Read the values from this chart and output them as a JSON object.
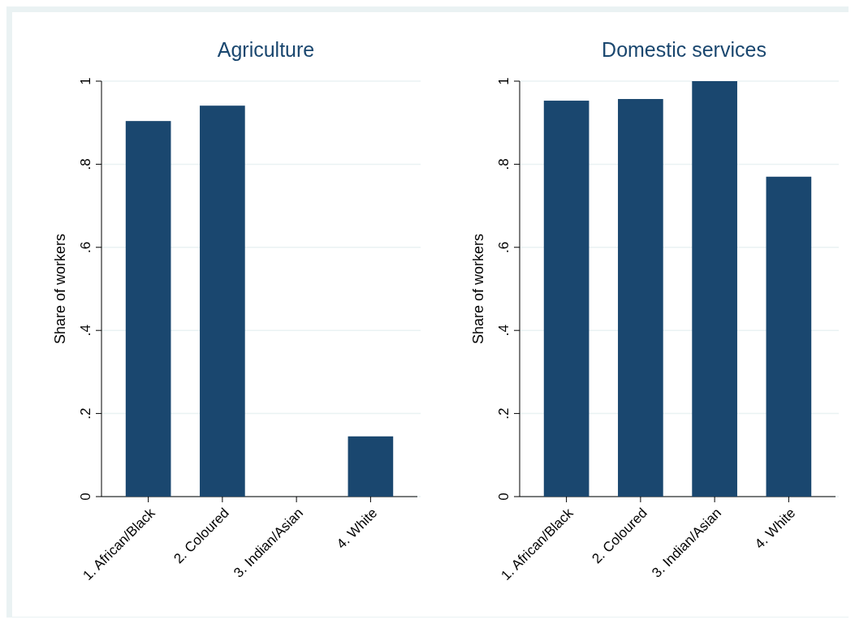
{
  "chart_data": [
    {
      "type": "bar",
      "title": "Agriculture",
      "ylabel": "Share of workers",
      "categories": [
        "1. African/Black",
        "2. Coloured",
        "3. Indian/Asian",
        "4. White"
      ],
      "values": [
        0.904,
        0.941,
        0,
        0.145
      ],
      "color": "#1a476f",
      "ylim": [
        0,
        1
      ],
      "yticks": [
        {
          "value": 0,
          "label": "0"
        },
        {
          "value": 0.2,
          "label": ".2"
        },
        {
          "value": 0.4,
          "label": ".4"
        },
        {
          "value": 0.6,
          "label": ".6"
        },
        {
          "value": 0.8,
          "label": ".8"
        },
        {
          "value": 1,
          "label": "1"
        }
      ],
      "grid": "y"
    },
    {
      "type": "bar",
      "title": "Domestic services",
      "ylabel": "Share of workers",
      "categories": [
        "1. African/Black",
        "2. Coloured",
        "3. Indian/Asian",
        "4. White"
      ],
      "values": [
        0.953,
        0.957,
        1,
        0.77
      ],
      "color": "#1a476f",
      "ylim": [
        0,
        1
      ],
      "yticks": [
        {
          "value": 0,
          "label": "0"
        },
        {
          "value": 0.2,
          "label": ".2"
        },
        {
          "value": 0.4,
          "label": ".4"
        },
        {
          "value": 0.6,
          "label": ".6"
        },
        {
          "value": 0.8,
          "label": ".8"
        },
        {
          "value": 1,
          "label": "1"
        }
      ],
      "grid": "y"
    }
  ]
}
